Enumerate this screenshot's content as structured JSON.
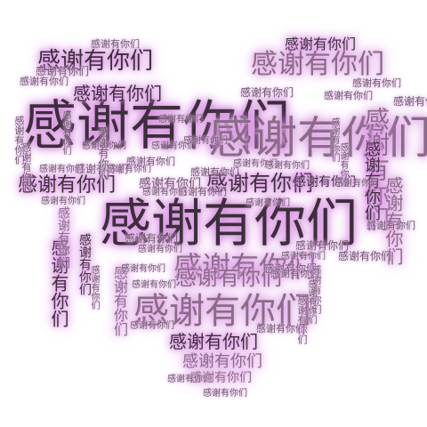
{
  "word": "感谢有你们",
  "palette": {
    "background": "#ffffff",
    "dark_text": "#3a3038",
    "pale_text": "#8a6c87",
    "glow": "#d27ade"
  }
}
